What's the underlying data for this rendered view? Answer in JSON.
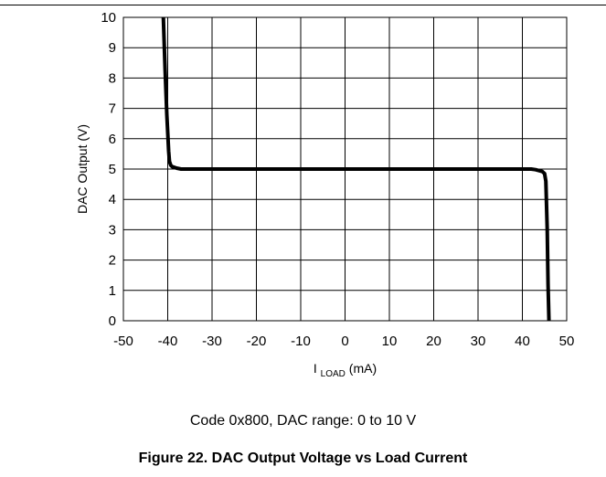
{
  "chart_data": {
    "type": "line",
    "xlabel_main": "I",
    "xlabel_sub": "LOAD",
    "xlabel_unit": " (mA)",
    "ylabel": "DAC Output (V)",
    "xlim": [
      -50,
      50
    ],
    "ylim": [
      0,
      10
    ],
    "xticks": [
      "-50",
      "-40",
      "-30",
      "-20",
      "-10",
      "0",
      "10",
      "20",
      "30",
      "40",
      "50"
    ],
    "yticks": [
      "0",
      "1",
      "2",
      "3",
      "4",
      "5",
      "6",
      "7",
      "8",
      "9",
      "10"
    ],
    "grid": true,
    "legend": "none",
    "series": [
      {
        "color": "#000000",
        "x": [
          -41,
          -40.6,
          -40.2,
          -39.8,
          -39.6,
          -39.3,
          -39,
          -38,
          -37,
          -36,
          0,
          41,
          42,
          43,
          44.5,
          45,
          45.3,
          45.6,
          45.8,
          46
        ],
        "y": [
          10,
          8.3,
          6.8,
          5.6,
          5.25,
          5.12,
          5.08,
          5.03,
          5.0,
          5.0,
          5.0,
          5.0,
          5.0,
          4.98,
          4.92,
          4.85,
          4.6,
          3.0,
          1.2,
          0
        ]
      }
    ]
  },
  "captions": {
    "subtitle": "Code 0x800, DAC range: 0 to 10 V",
    "figure_title": "Figure 22. DAC Output Voltage vs Load Current"
  }
}
